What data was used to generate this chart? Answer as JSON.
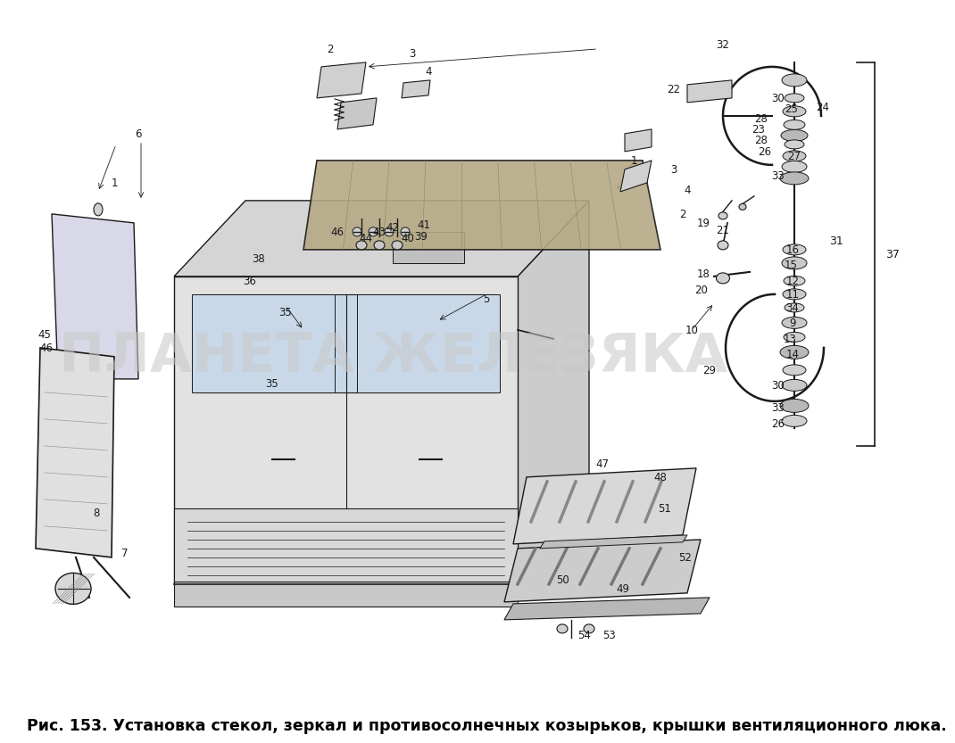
{
  "caption": "Рис. 153. Установка стекол, зеркал и противосолнечных козырьков, крышки вентиляционного люка.",
  "caption_fontsize": 12.5,
  "bg_color": "#ffffff",
  "fig_width": 10.0,
  "fig_height": 8.25,
  "watermark_text": "ПЛАНЕТА ЖЕЛЕЗЯКА",
  "watermark_color": "#c8c8c8",
  "watermark_alpha": 0.55,
  "watermark_fontsize": 44,
  "lc": "#1a1a1a",
  "cab_color": "#e2e2e2",
  "roof_color": "#d5d5d5",
  "side_color": "#cccccc",
  "visor_color": "#b5aa85",
  "glass_color": "#c8d8e8"
}
